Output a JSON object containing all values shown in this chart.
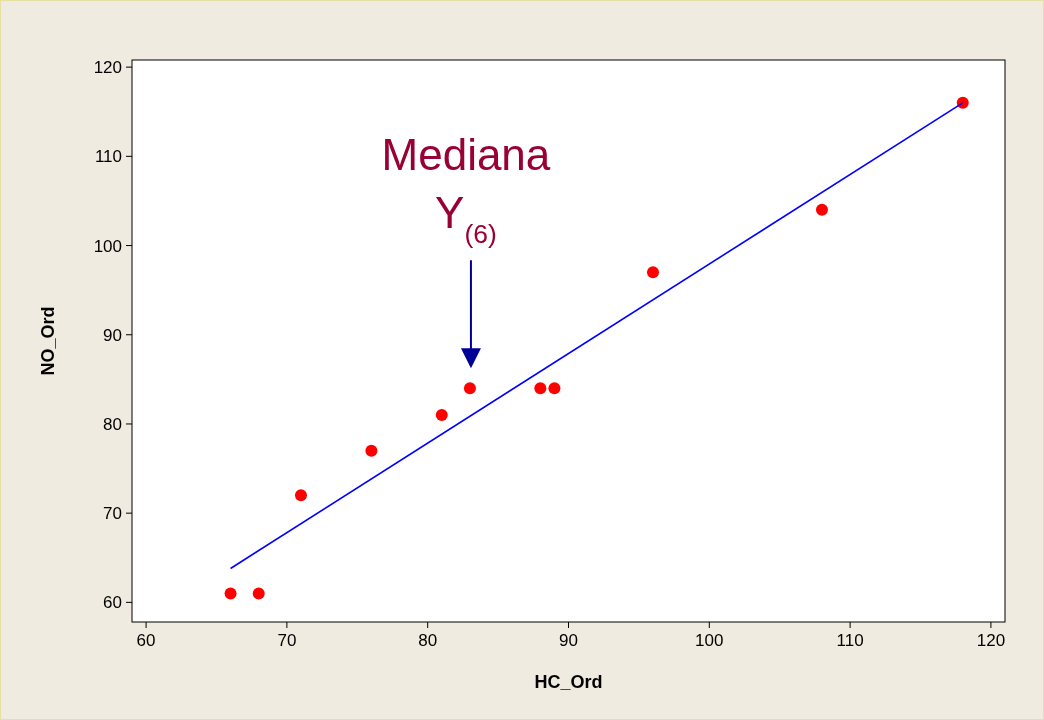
{
  "chart_data": {
    "type": "scatter",
    "xlabel": "HC_Ord",
    "ylabel": "NO_Ord",
    "xlim": [
      59,
      121
    ],
    "ylim": [
      57.8,
      120.8
    ],
    "xticks": [
      60,
      70,
      80,
      90,
      100,
      110,
      120
    ],
    "yticks": [
      60,
      70,
      80,
      90,
      100,
      110,
      120
    ],
    "grid": false,
    "marker": "circle",
    "x": [
      66,
      68,
      71,
      76,
      81,
      83,
      88,
      89,
      96,
      108,
      118
    ],
    "series": [
      {
        "color": "#ff0000",
        "values": [
          61,
          61,
          72,
          77,
          81,
          84,
          84,
          84,
          97,
          104,
          116
        ]
      },
      {
        "type": "line",
        "marker": "none",
        "color": "#0000ff",
        "x": [
          66,
          118
        ],
        "values": [
          63.8,
          116
        ]
      }
    ],
    "annotations": [
      "Mediana Y$_{(6)}$"
    ]
  }
}
